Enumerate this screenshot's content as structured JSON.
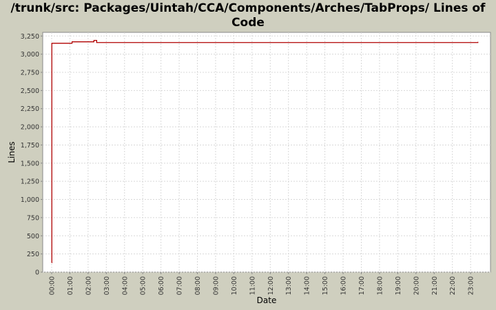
{
  "chart_data": {
    "type": "line",
    "title": "/trunk/src: Packages/Uintah/CCA/Components/Arches/TabProps/ Lines of Code",
    "xlabel": "Date",
    "ylabel": "Lines",
    "xlim": [
      0,
      23.6
    ],
    "ylim": [
      0,
      3300
    ],
    "grid": true,
    "line_color": "#b00000",
    "x_ticks": [
      "00:00",
      "01:00",
      "02:00",
      "03:00",
      "04:00",
      "05:00",
      "06:00",
      "07:00",
      "08:00",
      "09:00",
      "10:00",
      "11:00",
      "12:00",
      "13:00",
      "14:00",
      "15:00",
      "16:00",
      "17:00",
      "18:00",
      "19:00",
      "20:00",
      "21:00",
      "22:00",
      "23:00"
    ],
    "y_ticks": [
      0,
      250,
      500,
      750,
      1000,
      1250,
      1500,
      1750,
      2000,
      2250,
      2500,
      2750,
      3000,
      3250
    ],
    "y_tick_labels": [
      "0",
      "250",
      "500",
      "750",
      "1,000",
      "1,250",
      "1,500",
      "1,750",
      "2,000",
      "2,250",
      "2,500",
      "2,750",
      "3,000",
      "3,250"
    ],
    "series": [
      {
        "step": true,
        "points": [
          [
            0.0,
            130
          ],
          [
            0.01,
            3150
          ],
          [
            1.1,
            3150
          ],
          [
            1.12,
            3170
          ],
          [
            2.3,
            3170
          ],
          [
            2.32,
            3190
          ],
          [
            2.45,
            3190
          ],
          [
            2.47,
            3160
          ],
          [
            23.35,
            3160
          ],
          [
            23.4,
            3170
          ]
        ]
      }
    ]
  }
}
